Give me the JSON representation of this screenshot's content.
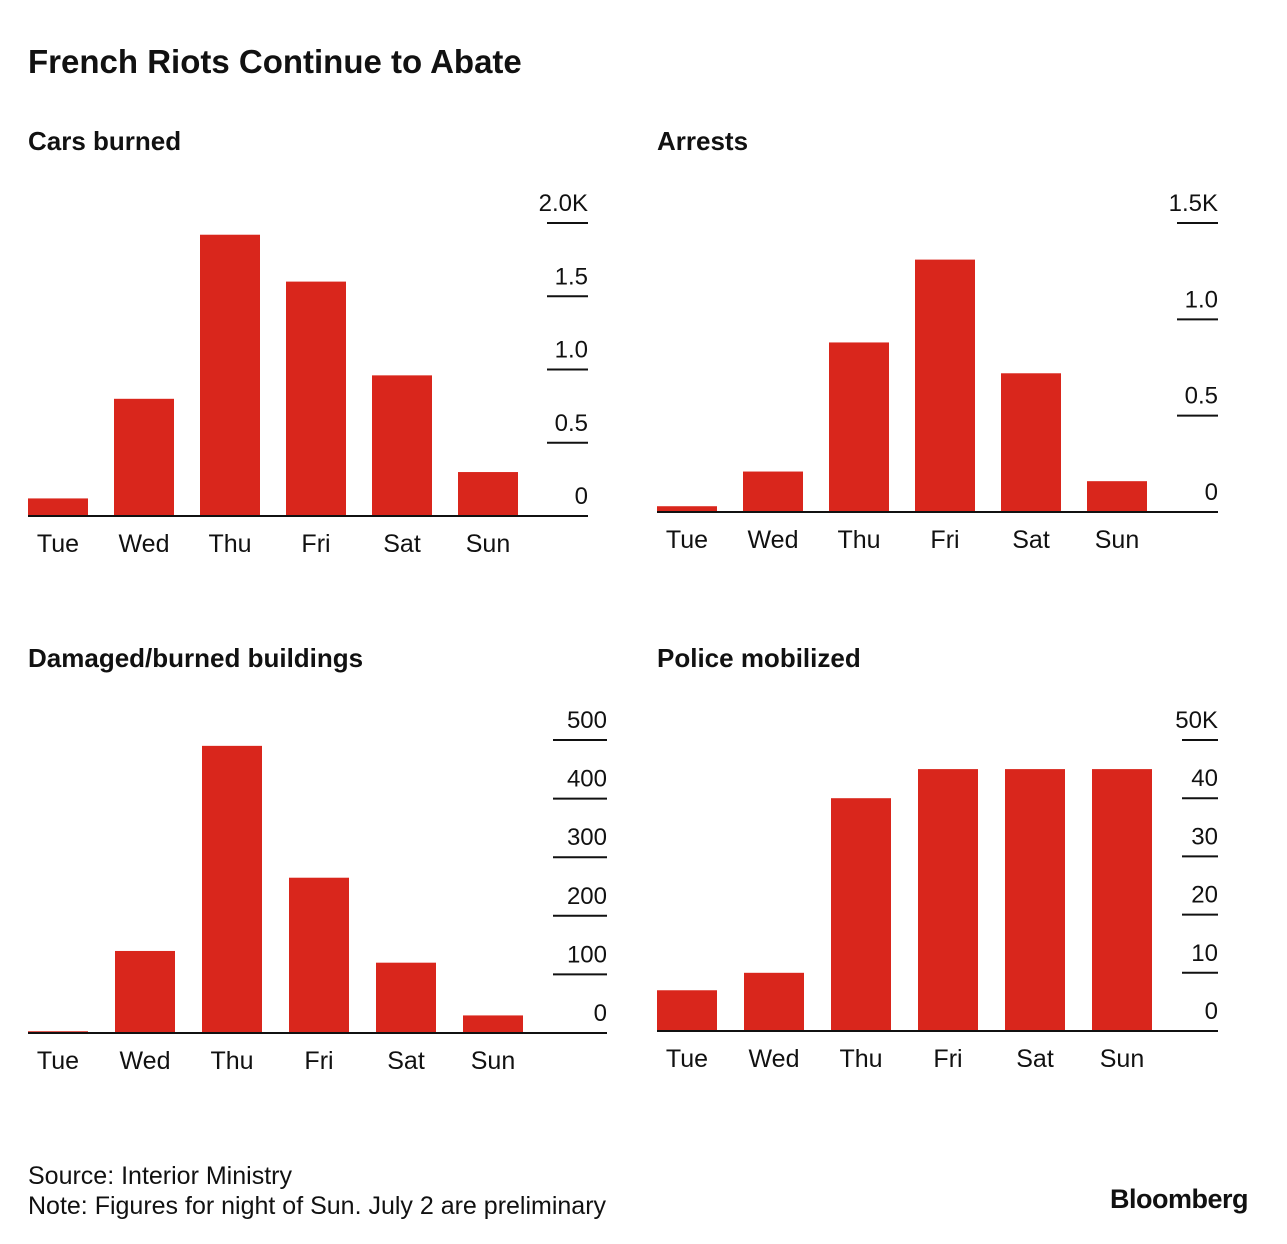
{
  "title": "French Riots Continue to Abate",
  "source": "Source: Interior Ministry",
  "note": "Note: Figures for night of Sun. July 2 are preliminary",
  "brand": "Bloomberg",
  "chart_data": [
    {
      "type": "bar",
      "title": "Cars burned",
      "color": "#d9261c",
      "categories": [
        "Tue",
        "Wed",
        "Thu",
        "Fri",
        "Sat",
        "Sun"
      ],
      "values": [
        120,
        800,
        1920,
        1600,
        960,
        300
      ],
      "ylim": [
        0,
        2000
      ],
      "yticks": [
        0,
        {
          "value": 500,
          "label": "0.5"
        },
        {
          "value": 1000,
          "label": "1.0"
        },
        {
          "value": 1500,
          "label": "1.5"
        },
        {
          "value": 2000,
          "label": "2.0K"
        }
      ]
    },
    {
      "type": "bar",
      "title": "Arrests",
      "color": "#d9261c",
      "categories": [
        "Tue",
        "Wed",
        "Thu",
        "Fri",
        "Sat",
        "Sun"
      ],
      "values": [
        30,
        210,
        880,
        1310,
        720,
        160
      ],
      "ylim": [
        0,
        1500
      ],
      "yticks": [
        0,
        {
          "value": 500,
          "label": "0.5"
        },
        {
          "value": 1000,
          "label": "1.0"
        },
        {
          "value": 1500,
          "label": "1.5K"
        }
      ]
    },
    {
      "type": "bar",
      "title": "Damaged/burned buildings",
      "color": "#d9261c",
      "categories": [
        "Tue",
        "Wed",
        "Thu",
        "Fri",
        "Sat",
        "Sun"
      ],
      "values": [
        3,
        140,
        490,
        265,
        120,
        30
      ],
      "ylim": [
        0,
        500
      ],
      "yticks": [
        0,
        100,
        200,
        300,
        400,
        500
      ]
    },
    {
      "type": "bar",
      "title": "Police mobilized",
      "color": "#d9261c",
      "categories": [
        "Tue",
        "Wed",
        "Thu",
        "Fri",
        "Sat",
        "Sun"
      ],
      "values": [
        7000,
        10000,
        40000,
        45000,
        45000,
        45000
      ],
      "ylim": [
        0,
        50000
      ],
      "yticks": [
        0,
        {
          "value": 10000,
          "label": "10"
        },
        {
          "value": 20000,
          "label": "20"
        },
        {
          "value": 30000,
          "label": "30"
        },
        {
          "value": 40000,
          "label": "40"
        },
        {
          "value": 50000,
          "label": "50K"
        }
      ]
    }
  ]
}
